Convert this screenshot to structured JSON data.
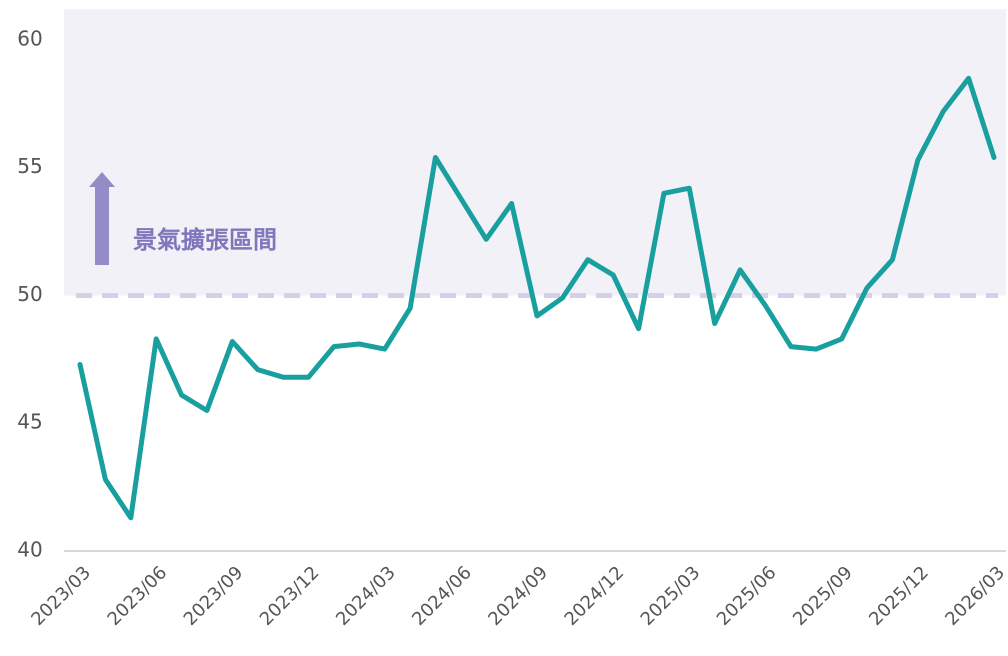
{
  "chart_data": {
    "type": "line",
    "categories": [
      "2023/03",
      null,
      null,
      "2023/06",
      null,
      null,
      "2023/09",
      null,
      null,
      "2023/12",
      null,
      null,
      "2024/03",
      null,
      null,
      "2024/06",
      null,
      null,
      "2024/09",
      null,
      null,
      "2024/12",
      null,
      null,
      "2025/03",
      null,
      null,
      "2025/06",
      null,
      null,
      "2025/09",
      null,
      null,
      "2025/12",
      null,
      null,
      "2026/03"
    ],
    "values": [
      47.3,
      42.8,
      41.3,
      48.3,
      46.1,
      45.5,
      48.2,
      47.1,
      46.8,
      46.8,
      48.0,
      48.1,
      47.9,
      49.5,
      55.4,
      53.8,
      52.2,
      53.6,
      49.2,
      49.9,
      51.4,
      50.8,
      48.7,
      54.0,
      54.2,
      48.9,
      51.0,
      49.6,
      48.0,
      47.9,
      48.3,
      50.3,
      51.4,
      55.3,
      57.2,
      58.5,
      55.4
    ],
    "color": "#1a9f9f",
    "ylim": [
      40,
      61.2
    ],
    "yticks": [
      40,
      45,
      50,
      55,
      60
    ],
    "reference_line": 50,
    "annotation": "景氣擴張區間",
    "annotation_color": "#7f77bb",
    "band_color": "#f2f1f8"
  }
}
